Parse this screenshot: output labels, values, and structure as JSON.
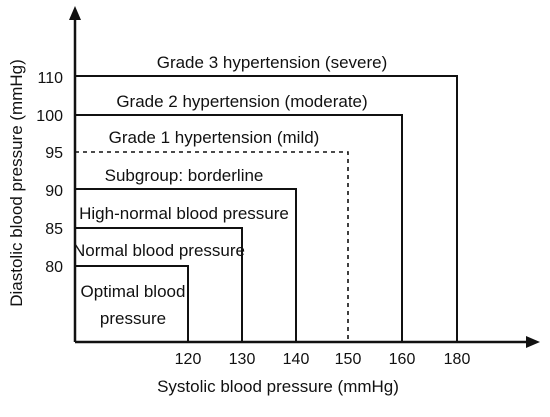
{
  "axes": {
    "x_title": "Systolic blood pressure (mmHg)",
    "y_title": "Diastolic blood pressure (mmHg)",
    "x_ticks": [
      "120",
      "130",
      "140",
      "150",
      "160",
      "180"
    ],
    "y_ticks": [
      "80",
      "85",
      "90",
      "95",
      "100",
      "110"
    ]
  },
  "regions": [
    {
      "name": "optimal",
      "label": "Optimal blood pressure",
      "systolic_max": 120,
      "diastolic_max": 80,
      "style": "solid"
    },
    {
      "name": "normal",
      "label": "Normal blood pressure",
      "systolic_max": 130,
      "diastolic_max": 85,
      "style": "solid"
    },
    {
      "name": "high-normal",
      "label": "High-normal blood pressure",
      "systolic_max": 140,
      "diastolic_max": 90,
      "style": "solid"
    },
    {
      "name": "borderline",
      "label": "Subgroup: borderline",
      "systolic_max": 150,
      "diastolic_max": 95,
      "style": "dashed"
    },
    {
      "name": "grade1",
      "label": "Grade 1 hypertension (mild)",
      "systolic_max": 160,
      "diastolic_max": 100,
      "style": "solid"
    },
    {
      "name": "grade2",
      "label": "Grade 2 hypertension (moderate)",
      "systolic_max": 180,
      "diastolic_max": 110,
      "style": "solid"
    },
    {
      "name": "grade3",
      "label": "Grade 3 hypertension (severe)",
      "systolic_max": null,
      "diastolic_max": null,
      "style": "solid"
    }
  ],
  "colors": {
    "line": "#111111",
    "text": "#111111"
  }
}
